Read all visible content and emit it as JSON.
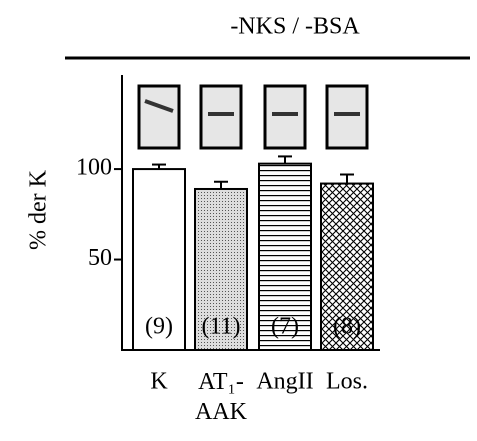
{
  "chart_data": {
    "type": "bar",
    "title": "-NKS / -BSA",
    "y_label": "% der K",
    "categories": [
      "K",
      "AT₁-AAK",
      "AngII",
      "Los."
    ],
    "values": [
      100,
      89,
      103,
      92
    ],
    "errors": [
      2.5,
      4,
      4,
      5
    ],
    "annotations": [
      "(9)",
      "(11)",
      "(7)",
      "(8)"
    ],
    "ylim": [
      0,
      152
    ],
    "yticks": [
      50,
      100
    ]
  }
}
